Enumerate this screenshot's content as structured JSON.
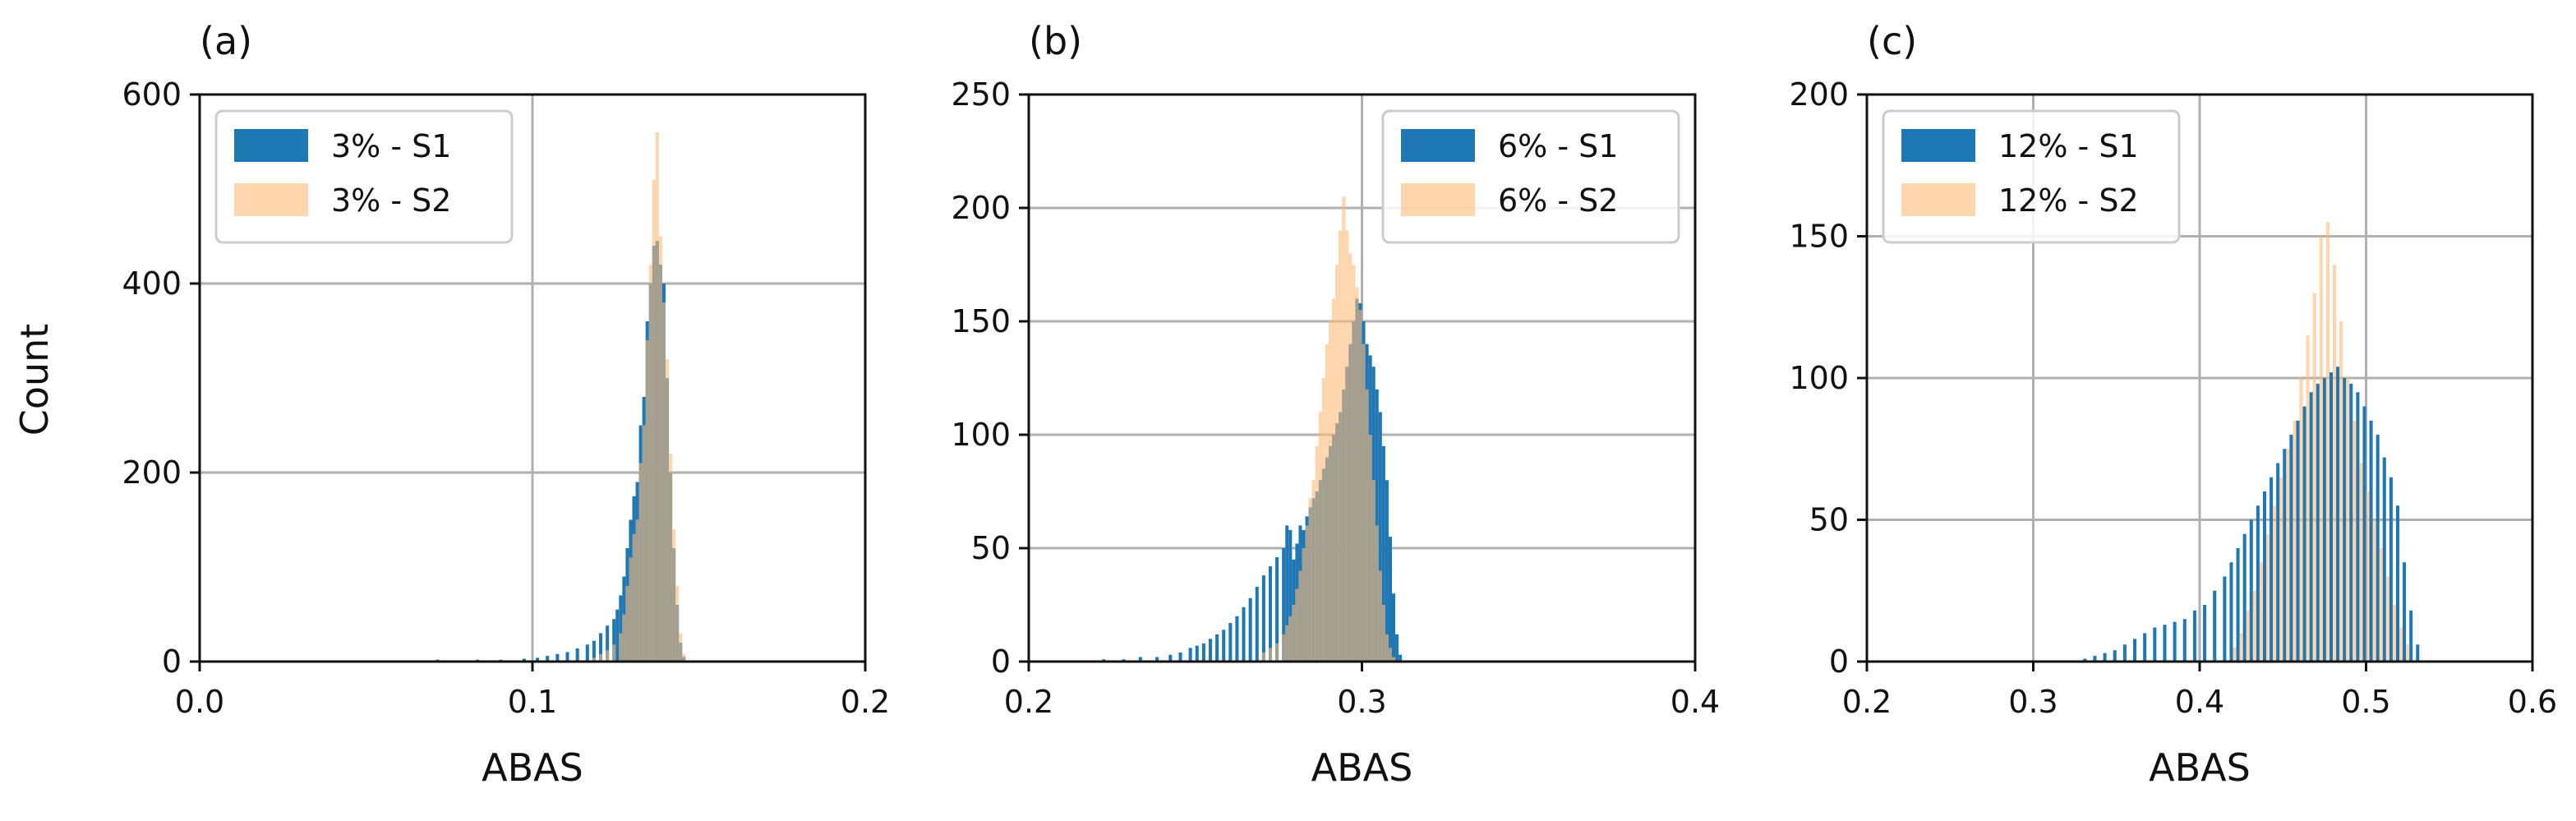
{
  "figure": {
    "ylabel": "Count",
    "colors": {
      "s1": "#1f77b4",
      "s2": "#ffbb78",
      "grid": "#b0b0b0"
    }
  },
  "chart_data": [
    {
      "type": "histogram",
      "panel_label": "(a)",
      "xlabel": "ABAS",
      "ylabel": "Count",
      "xlim": [
        0.0,
        0.2
      ],
      "ylim": [
        0,
        600
      ],
      "xticks": [
        "0.0",
        "0.1",
        "0.2"
      ],
      "yticks": [
        "0",
        "200",
        "400",
        "600"
      ],
      "grid": true,
      "legend_position": "top-left",
      "bin_width": 0.001,
      "series": [
        {
          "name": "3% - S1",
          "color": "#1f77b4",
          "bins": [
            [
              0.071,
              2
            ],
            [
              0.076,
              1
            ],
            [
              0.083,
              2
            ],
            [
              0.09,
              2
            ],
            [
              0.097,
              3
            ],
            [
              0.101,
              4
            ],
            [
              0.104,
              6
            ],
            [
              0.107,
              8
            ],
            [
              0.11,
              10
            ],
            [
              0.113,
              14
            ],
            [
              0.116,
              18
            ],
            [
              0.118,
              22
            ],
            [
              0.12,
              30
            ],
            [
              0.122,
              38
            ],
            [
              0.124,
              45
            ],
            [
              0.125,
              55
            ],
            [
              0.126,
              70
            ],
            [
              0.127,
              90
            ],
            [
              0.128,
              120
            ],
            [
              0.129,
              150
            ],
            [
              0.13,
              175
            ],
            [
              0.131,
              190
            ],
            [
              0.132,
              250
            ],
            [
              0.133,
              280
            ],
            [
              0.134,
              360
            ],
            [
              0.135,
              400
            ],
            [
              0.136,
              440
            ],
            [
              0.137,
              445
            ],
            [
              0.138,
              420
            ],
            [
              0.139,
              400
            ],
            [
              0.14,
              300
            ],
            [
              0.141,
              200
            ],
            [
              0.142,
              120
            ],
            [
              0.143,
              60
            ],
            [
              0.144,
              20
            ],
            [
              0.145,
              5
            ]
          ]
        },
        {
          "name": "3% - S2",
          "color": "#ffbb78",
          "bins": [
            [
              0.118,
              4
            ],
            [
              0.12,
              8
            ],
            [
              0.122,
              12
            ],
            [
              0.124,
              18
            ],
            [
              0.126,
              30
            ],
            [
              0.127,
              50
            ],
            [
              0.128,
              80
            ],
            [
              0.129,
              110
            ],
            [
              0.13,
              135
            ],
            [
              0.131,
              150
            ],
            [
              0.132,
              210
            ],
            [
              0.133,
              250
            ],
            [
              0.134,
              340
            ],
            [
              0.135,
              420
            ],
            [
              0.136,
              510
            ],
            [
              0.137,
              560
            ],
            [
              0.138,
              450
            ],
            [
              0.139,
              380
            ],
            [
              0.14,
              320
            ],
            [
              0.141,
              220
            ],
            [
              0.142,
              140
            ],
            [
              0.143,
              80
            ],
            [
              0.144,
              30
            ],
            [
              0.145,
              8
            ]
          ]
        }
      ]
    },
    {
      "type": "histogram",
      "panel_label": "(b)",
      "xlabel": "ABAS",
      "ylabel": "",
      "xlim": [
        0.2,
        0.4
      ],
      "ylim": [
        0,
        250
      ],
      "xticks": [
        "0.2",
        "0.3",
        "0.4"
      ],
      "yticks": [
        "0",
        "50",
        "100",
        "150",
        "200",
        "250"
      ],
      "grid": true,
      "legend_position": "top-right",
      "bin_width": 0.001,
      "series": [
        {
          "name": "6% - S1",
          "color": "#1f77b4",
          "bins": [
            [
              0.222,
              1
            ],
            [
              0.228,
              1
            ],
            [
              0.233,
              2
            ],
            [
              0.238,
              2
            ],
            [
              0.242,
              3
            ],
            [
              0.245,
              4
            ],
            [
              0.248,
              6
            ],
            [
              0.25,
              7
            ],
            [
              0.252,
              8
            ],
            [
              0.254,
              10
            ],
            [
              0.256,
              12
            ],
            [
              0.258,
              14
            ],
            [
              0.26,
              17
            ],
            [
              0.262,
              20
            ],
            [
              0.264,
              24
            ],
            [
              0.266,
              28
            ],
            [
              0.268,
              33
            ],
            [
              0.27,
              38
            ],
            [
              0.272,
              42
            ],
            [
              0.274,
              46
            ],
            [
              0.276,
              50
            ],
            [
              0.277,
              60
            ],
            [
              0.278,
              58
            ],
            [
              0.279,
              45
            ],
            [
              0.28,
              52
            ],
            [
              0.281,
              60
            ],
            [
              0.282,
              58
            ],
            [
              0.283,
              64
            ],
            [
              0.284,
              68
            ],
            [
              0.285,
              72
            ],
            [
              0.286,
              75
            ],
            [
              0.287,
              80
            ],
            [
              0.288,
              85
            ],
            [
              0.289,
              90
            ],
            [
              0.29,
              95
            ],
            [
              0.291,
              100
            ],
            [
              0.292,
              105
            ],
            [
              0.293,
              110
            ],
            [
              0.294,
              120
            ],
            [
              0.295,
              130
            ],
            [
              0.296,
              140
            ],
            [
              0.297,
              150
            ],
            [
              0.298,
              160
            ],
            [
              0.299,
              158
            ],
            [
              0.3,
              150
            ],
            [
              0.301,
              140
            ],
            [
              0.302,
              135
            ],
            [
              0.303,
              130
            ],
            [
              0.304,
              120
            ],
            [
              0.305,
              110
            ],
            [
              0.306,
              95
            ],
            [
              0.307,
              80
            ],
            [
              0.308,
              55
            ],
            [
              0.309,
              30
            ],
            [
              0.31,
              12
            ],
            [
              0.311,
              3
            ]
          ]
        },
        {
          "name": "6% - S2",
          "color": "#ffbb78",
          "bins": [
            [
              0.27,
              4
            ],
            [
              0.272,
              6
            ],
            [
              0.274,
              8
            ],
            [
              0.276,
              12
            ],
            [
              0.277,
              16
            ],
            [
              0.278,
              20
            ],
            [
              0.279,
              25
            ],
            [
              0.28,
              32
            ],
            [
              0.281,
              40
            ],
            [
              0.282,
              50
            ],
            [
              0.283,
              60
            ],
            [
              0.284,
              72
            ],
            [
              0.285,
              80
            ],
            [
              0.286,
              95
            ],
            [
              0.287,
              110
            ],
            [
              0.288,
              125
            ],
            [
              0.289,
              140
            ],
            [
              0.29,
              150
            ],
            [
              0.291,
              160
            ],
            [
              0.292,
              175
            ],
            [
              0.293,
              190
            ],
            [
              0.294,
              205
            ],
            [
              0.295,
              190
            ],
            [
              0.296,
              180
            ],
            [
              0.297,
              175
            ],
            [
              0.298,
              165
            ],
            [
              0.299,
              155
            ],
            [
              0.3,
              140
            ],
            [
              0.301,
              120
            ],
            [
              0.302,
              100
            ],
            [
              0.303,
              80
            ],
            [
              0.304,
              60
            ],
            [
              0.305,
              40
            ],
            [
              0.306,
              25
            ],
            [
              0.307,
              12
            ],
            [
              0.308,
              6
            ],
            [
              0.309,
              2
            ]
          ]
        }
      ]
    },
    {
      "type": "histogram",
      "panel_label": "(c)",
      "xlabel": "ABAS",
      "ylabel": "",
      "xlim": [
        0.2,
        0.6
      ],
      "ylim": [
        0,
        200
      ],
      "xticks": [
        "0.2",
        "0.3",
        "0.4",
        "0.5",
        "0.6"
      ],
      "yticks": [
        "0",
        "50",
        "100",
        "150",
        "200"
      ],
      "grid": true,
      "legend_position": "top-left",
      "bin_width": 0.002,
      "series": [
        {
          "name": "12% - S1",
          "color": "#1f77b4",
          "bins": [
            [
              0.33,
              1
            ],
            [
              0.336,
              2
            ],
            [
              0.342,
              3
            ],
            [
              0.348,
              4
            ],
            [
              0.354,
              6
            ],
            [
              0.36,
              8
            ],
            [
              0.366,
              10
            ],
            [
              0.372,
              12
            ],
            [
              0.378,
              13
            ],
            [
              0.384,
              14
            ],
            [
              0.39,
              15
            ],
            [
              0.396,
              18
            ],
            [
              0.402,
              20
            ],
            [
              0.408,
              25
            ],
            [
              0.414,
              30
            ],
            [
              0.418,
              35
            ],
            [
              0.422,
              40
            ],
            [
              0.426,
              45
            ],
            [
              0.43,
              50
            ],
            [
              0.434,
              55
            ],
            [
              0.438,
              60
            ],
            [
              0.442,
              65
            ],
            [
              0.446,
              70
            ],
            [
              0.45,
              75
            ],
            [
              0.454,
              80
            ],
            [
              0.458,
              85
            ],
            [
              0.462,
              90
            ],
            [
              0.466,
              95
            ],
            [
              0.47,
              98
            ],
            [
              0.474,
              100
            ],
            [
              0.478,
              102
            ],
            [
              0.482,
              104
            ],
            [
              0.486,
              100
            ],
            [
              0.49,
              98
            ],
            [
              0.494,
              95
            ],
            [
              0.498,
              90
            ],
            [
              0.502,
              85
            ],
            [
              0.506,
              80
            ],
            [
              0.51,
              72
            ],
            [
              0.514,
              65
            ],
            [
              0.518,
              55
            ],
            [
              0.522,
              35
            ],
            [
              0.526,
              18
            ],
            [
              0.53,
              6
            ]
          ]
        },
        {
          "name": "12% - S2",
          "color": "#ffbb78",
          "bins": [
            [
              0.42,
              5
            ],
            [
              0.424,
              10
            ],
            [
              0.428,
              18
            ],
            [
              0.432,
              25
            ],
            [
              0.436,
              35
            ],
            [
              0.44,
              45
            ],
            [
              0.444,
              55
            ],
            [
              0.448,
              65
            ],
            [
              0.452,
              75
            ],
            [
              0.456,
              85
            ],
            [
              0.46,
              100
            ],
            [
              0.464,
              115
            ],
            [
              0.468,
              130
            ],
            [
              0.472,
              150
            ],
            [
              0.476,
              155
            ],
            [
              0.48,
              140
            ],
            [
              0.484,
              120
            ],
            [
              0.488,
              100
            ],
            [
              0.492,
              85
            ],
            [
              0.496,
              70
            ],
            [
              0.5,
              60
            ],
            [
              0.504,
              50
            ],
            [
              0.508,
              40
            ],
            [
              0.512,
              30
            ],
            [
              0.516,
              20
            ],
            [
              0.52,
              12
            ],
            [
              0.524,
              6
            ]
          ]
        }
      ]
    }
  ]
}
